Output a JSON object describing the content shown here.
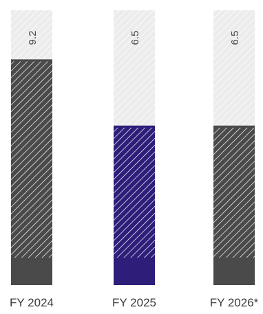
{
  "chart_data": {
    "type": "bar",
    "title": "",
    "xlabel": "",
    "ylabel": "",
    "categories": [
      "FY 2024",
      "FY 2025",
      "FY 2026*"
    ],
    "values": [
      9.2,
      6.5,
      6.5
    ],
    "value_labels": [
      "9.2",
      "6.5",
      "6.5"
    ],
    "ylim": [
      0,
      11.2
    ],
    "grid": false,
    "legend": "none",
    "colors": {
      "bars": [
        "#4a4a4a",
        "#2e1e7a",
        "#4a4a4a"
      ],
      "track": "#ececec",
      "hatch": "#ffffff",
      "track_hatch": "#ffffff",
      "value_text": "#4a4a4a",
      "category_text": "#3b3b3b"
    }
  }
}
